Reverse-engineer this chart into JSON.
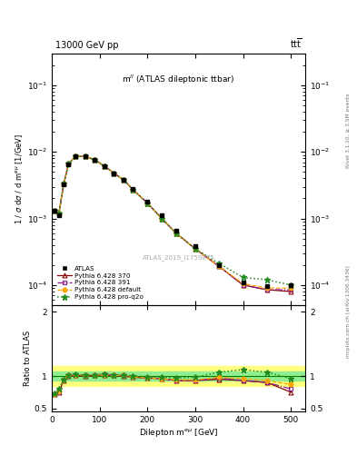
{
  "title_left": "13000 GeV pp",
  "title_right": "tt",
  "plot_label": "m$^{ll}$ (ATLAS dileptonic ttbar)",
  "watermark": "ATLAS_2019_I1759875",
  "rivet_label": "Rivet 3.1.10, ≥ 3.5M events",
  "mcplots_label": "mcplots.cern.ch [arXiv:1306.3436]",
  "ylabel_main": "1 / σ dσ / d m$^{e\\mu}$ [1/GeV]",
  "ylabel_ratio": "Ratio to ATLAS",
  "xlabel": "Dilepton m$^{e\\mu}$ [GeV]",
  "x_data": [
    5,
    15,
    25,
    35,
    50,
    70,
    90,
    110,
    130,
    150,
    170,
    200,
    230,
    260,
    300,
    350,
    400,
    450,
    500
  ],
  "atlas_y": [
    0.0013,
    0.0011,
    0.0032,
    0.0065,
    0.0085,
    0.0085,
    0.0075,
    0.006,
    0.0048,
    0.0038,
    0.0028,
    0.0018,
    0.0011,
    0.00065,
    0.00038,
    0.0002,
    0.00011,
    9.5e-05,
    0.0001
  ],
  "py370_y": [
    0.0013,
    0.0012,
    0.0033,
    0.0066,
    0.0086,
    0.0085,
    0.0076,
    0.0061,
    0.0048,
    0.0038,
    0.0027,
    0.0017,
    0.001,
    0.0006,
    0.00035,
    0.00019,
    0.0001,
    8.5e-05,
    8e-05
  ],
  "py391_y": [
    0.0013,
    0.0012,
    0.0033,
    0.0066,
    0.0086,
    0.0085,
    0.0076,
    0.0061,
    0.0048,
    0.0038,
    0.0027,
    0.0017,
    0.001,
    0.0006,
    0.00035,
    0.00019,
    0.0001,
    8.5e-05,
    8.5e-05
  ],
  "pydef_y": [
    0.0013,
    0.0012,
    0.0033,
    0.0066,
    0.0086,
    0.0085,
    0.0076,
    0.0061,
    0.0048,
    0.0038,
    0.0027,
    0.0017,
    0.001,
    0.0006,
    0.00035,
    0.00019,
    0.000105,
    9e-05,
    9e-05
  ],
  "pyq2o_y": [
    0.0013,
    0.0012,
    0.0033,
    0.0066,
    0.0086,
    0.0085,
    0.0076,
    0.0061,
    0.0048,
    0.0038,
    0.0027,
    0.0017,
    0.001,
    0.0006,
    0.00035,
    0.00021,
    0.00013,
    0.00012,
    0.0001
  ],
  "ratio_x": [
    5,
    15,
    25,
    35,
    50,
    70,
    90,
    110,
    130,
    150,
    170,
    200,
    230,
    260,
    300,
    350,
    400,
    450,
    500
  ],
  "ratio_py370": [
    0.72,
    0.75,
    0.93,
    1.0,
    1.01,
    1.0,
    1.01,
    1.02,
    1.01,
    1.0,
    0.98,
    0.97,
    0.96,
    0.93,
    0.93,
    0.95,
    0.93,
    0.9,
    0.75
  ],
  "ratio_py391": [
    0.72,
    0.77,
    0.94,
    1.01,
    1.02,
    1.01,
    1.02,
    1.03,
    1.01,
    1.01,
    0.99,
    0.97,
    0.96,
    0.93,
    0.93,
    0.97,
    0.93,
    0.9,
    0.8
  ],
  "ratio_pydef": [
    0.72,
    0.77,
    0.94,
    1.01,
    1.02,
    1.01,
    1.02,
    1.02,
    1.01,
    1.01,
    0.99,
    0.97,
    0.96,
    0.94,
    0.94,
    0.98,
    0.96,
    0.93,
    0.87
  ],
  "ratio_pyq2o": [
    0.73,
    0.8,
    0.95,
    1.02,
    1.03,
    1.01,
    1.02,
    1.03,
    1.02,
    1.02,
    1.0,
    0.99,
    0.98,
    0.97,
    0.98,
    1.06,
    1.1,
    1.06,
    0.96
  ],
  "color_py370": "#8B0000",
  "color_py391": "#8B1A8B",
  "color_pydef": "#FFA500",
  "color_pyq2o": "#228B22",
  "color_atlas": "black",
  "band_green": "#90EE90",
  "band_yellow": "#FFFF80",
  "xlim": [
    0,
    530
  ],
  "ylim_main": [
    5e-05,
    0.3
  ],
  "ylim_ratio": [
    0.45,
    2.1
  ],
  "ratio_yticks": [
    0.5,
    1.0,
    2.0
  ],
  "ratio_band_inner": 0.07,
  "ratio_band_outer": 0.15
}
